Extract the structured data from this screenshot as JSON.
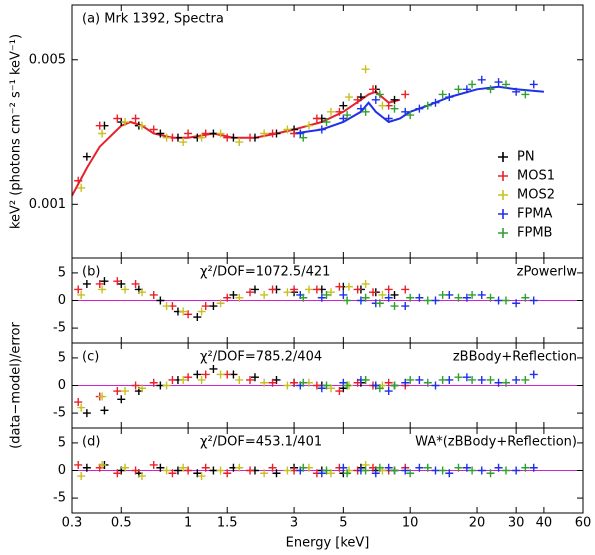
{
  "chart_data": [
    {
      "type": "scatter",
      "title": "(a) Mrk 1392, Spectra",
      "y_label": "keV² (photons cm⁻² s⁻¹ keV⁻¹)",
      "xscale": "log",
      "yscale": "log",
      "xlim": [
        0.3,
        60
      ],
      "ylim": [
        0.00055,
        0.0092
      ],
      "yticks": [
        0.001,
        0.005
      ],
      "legend": "right",
      "series": [
        {
          "name": "PN",
          "color": "#000000",
          "x": [
            0.35,
            0.42,
            0.5,
            0.6,
            0.75,
            0.9,
            1.1,
            1.3,
            1.6,
            2.0,
            2.5,
            3.0,
            4.0,
            5.0,
            6.0,
            7.0,
            8.5
          ],
          "values": [
            0.0017,
            0.0024,
            0.0025,
            0.0024,
            0.0022,
            0.0021,
            0.0021,
            0.0022,
            0.0021,
            0.0021,
            0.0022,
            0.0023,
            0.0026,
            0.003,
            0.0033,
            0.0036,
            0.0032
          ]
        },
        {
          "name": "MOS1",
          "color": "#e8202a",
          "x": [
            0.32,
            0.4,
            0.48,
            0.58,
            0.7,
            0.85,
            1.0,
            1.2,
            1.5,
            1.9,
            2.4,
            3.0,
            3.8,
            4.8,
            5.8,
            6.8,
            8.0,
            9.5
          ],
          "values": [
            0.0013,
            0.0024,
            0.0026,
            0.0026,
            0.0023,
            0.0021,
            0.0022,
            0.0022,
            0.0021,
            0.0021,
            0.0022,
            0.0022,
            0.0026,
            0.0028,
            0.0032,
            0.0036,
            0.003,
            0.0034
          ]
        },
        {
          "name": "MOS2",
          "color": "#c8c020",
          "x": [
            0.33,
            0.41,
            0.52,
            0.62,
            0.8,
            0.95,
            1.15,
            1.4,
            1.7,
            2.2,
            2.8,
            3.5,
            4.4,
            5.3,
            6.3,
            7.5
          ],
          "values": [
            0.0012,
            0.0022,
            0.0025,
            0.0024,
            0.0021,
            0.002,
            0.0021,
            0.0022,
            0.002,
            0.0022,
            0.0023,
            0.0024,
            0.0028,
            0.0033,
            0.0045,
            0.003
          ]
        },
        {
          "name": "FPMA",
          "color": "#2030e8",
          "x": [
            3.2,
            4.0,
            5.0,
            6.0,
            7.0,
            8.0,
            9.5,
            11,
            13,
            15,
            18,
            21,
            25,
            30,
            36
          ],
          "values": [
            0.0022,
            0.0023,
            0.0026,
            0.0029,
            0.0032,
            0.0026,
            0.0028,
            0.0029,
            0.0031,
            0.0033,
            0.0036,
            0.004,
            0.0039,
            0.0035,
            0.0038
          ]
        },
        {
          "name": "FPMB",
          "color": "#30a030",
          "x": [
            3.3,
            4.2,
            5.2,
            6.3,
            7.3,
            8.5,
            10,
            12,
            14,
            16.5,
            19,
            23,
            27,
            33
          ],
          "values": [
            0.0021,
            0.0025,
            0.0027,
            0.0028,
            0.0034,
            0.0029,
            0.0027,
            0.003,
            0.0034,
            0.0036,
            0.0038,
            0.0036,
            0.0038,
            0.0034
          ]
        }
      ],
      "models": [
        {
          "color": "#e8202a",
          "x": [
            0.3,
            0.35,
            0.4,
            0.5,
            0.55,
            0.62,
            0.7,
            0.85,
            1.0,
            1.3,
            1.6,
            2.0,
            2.5,
            3.0,
            4.0,
            5.0,
            6.0,
            6.5,
            7.0,
            8.0,
            9.0
          ],
          "values": [
            0.0011,
            0.0015,
            0.0019,
            0.0024,
            0.0025,
            0.0024,
            0.0022,
            0.0021,
            0.0021,
            0.0022,
            0.0021,
            0.0021,
            0.0022,
            0.0023,
            0.0025,
            0.0028,
            0.0032,
            0.0034,
            0.0035,
            0.0031,
            0.0032
          ]
        },
        {
          "color": "#2030e8",
          "x": [
            3.0,
            4.0,
            5.0,
            6.0,
            6.5,
            7.0,
            8.0,
            9.0,
            10,
            12,
            15,
            20,
            25,
            30,
            40
          ],
          "values": [
            0.0022,
            0.0023,
            0.0025,
            0.0028,
            0.0031,
            0.0028,
            0.0025,
            0.0026,
            0.0028,
            0.003,
            0.0033,
            0.0036,
            0.0037,
            0.0036,
            0.0035
          ]
        }
      ]
    },
    {
      "type": "scatter",
      "title": "(b)",
      "stat": "χ²/DOF=1072.5/421",
      "model": "zPowerlw",
      "xscale": "log",
      "xlim": [
        0.3,
        60
      ],
      "ylim": [
        -7.7,
        7.7
      ],
      "yticks": [
        -5,
        0,
        5
      ],
      "zero_color": "#d020d0",
      "series": [
        {
          "color": "#000000",
          "x": [
            0.35,
            0.42,
            0.5,
            0.6,
            0.75,
            0.9,
            1.1,
            1.3,
            1.6,
            2.0,
            2.5,
            3.0,
            4.0,
            5.0,
            6.0,
            7.0,
            8.5
          ],
          "values": [
            3,
            3.5,
            3,
            2,
            0,
            -2,
            -3,
            -1,
            1,
            2,
            2,
            1.5,
            2,
            2.5,
            2,
            1.5,
            1
          ]
        },
        {
          "color": "#e8202a",
          "x": [
            0.32,
            0.4,
            0.48,
            0.58,
            0.7,
            0.85,
            1.0,
            1.2,
            1.5,
            1.9,
            2.4,
            3.0,
            3.8,
            4.8,
            5.8,
            6.8,
            8.0,
            9.5
          ],
          "values": [
            2,
            3,
            3.5,
            3,
            1,
            -1,
            -2.5,
            -1,
            0.5,
            1.5,
            2,
            2,
            2,
            2.5,
            2,
            1.5,
            2,
            2
          ]
        },
        {
          "color": "#c8c020",
          "x": [
            0.33,
            0.41,
            0.52,
            0.62,
            0.8,
            0.95,
            1.15,
            1.4,
            1.7,
            2.2,
            2.8,
            3.5,
            4.4,
            5.3,
            6.3,
            7.5
          ],
          "values": [
            1,
            2,
            2,
            1.5,
            -1,
            -2,
            -2,
            -0.5,
            0.5,
            1,
            1.5,
            2,
            1.5,
            2.5,
            3,
            1
          ]
        },
        {
          "color": "#2030e8",
          "x": [
            3.2,
            4.0,
            5.0,
            6.0,
            7.0,
            8.0,
            9.5,
            11,
            13,
            15,
            18,
            21,
            25,
            30,
            36
          ],
          "values": [
            1,
            0.5,
            1,
            0,
            -0.5,
            0.5,
            -1,
            0.5,
            0,
            1,
            0.5,
            1,
            0,
            -0.5,
            0
          ]
        },
        {
          "color": "#30a030",
          "x": [
            3.3,
            4.2,
            5.2,
            6.3,
            7.3,
            8.5,
            10,
            12,
            14,
            16.5,
            19,
            23,
            27,
            33
          ],
          "values": [
            0.5,
            1,
            0,
            0.5,
            -0.5,
            -1,
            0.5,
            0,
            1,
            0.5,
            1,
            0.5,
            0,
            0.5
          ]
        }
      ]
    },
    {
      "type": "scatter",
      "title": "(c)",
      "stat": "χ²/DOF=785.2/404",
      "model": "zBBody+Reflection",
      "y_label": "(data−model)/error",
      "xscale": "log",
      "xlim": [
        0.3,
        60
      ],
      "ylim": [
        -7.7,
        7.7
      ],
      "yticks": [
        -5,
        0,
        5
      ],
      "zero_color": "#d020d0",
      "series": [
        {
          "color": "#000000",
          "x": [
            0.35,
            0.42,
            0.5,
            0.6,
            0.75,
            0.9,
            1.1,
            1.3,
            1.6,
            2.0,
            2.5,
            3.0,
            4.0,
            5.0,
            6.0,
            7.0,
            8.5
          ],
          "values": [
            -5,
            -4.5,
            -2.5,
            -1,
            0,
            1,
            2,
            3,
            2,
            1.5,
            1,
            0.5,
            0,
            -0.5,
            0.5,
            0,
            0
          ]
        },
        {
          "color": "#e8202a",
          "x": [
            0.32,
            0.4,
            0.48,
            0.58,
            0.7,
            0.85,
            1.0,
            1.2,
            1.5,
            1.9,
            2.4,
            3.0,
            3.8,
            4.8,
            5.8,
            6.8,
            8.0,
            9.5
          ],
          "values": [
            -3,
            -2,
            -1,
            0,
            0.5,
            1,
            1.5,
            2,
            2,
            1,
            0.5,
            0.5,
            0,
            -1,
            0.5,
            0,
            0.5,
            0
          ]
        },
        {
          "color": "#c8c020",
          "x": [
            0.33,
            0.41,
            0.52,
            0.62,
            0.8,
            0.95,
            1.15,
            1.4,
            1.7,
            2.2,
            2.8,
            3.5,
            4.4,
            5.3,
            6.3,
            7.5
          ],
          "values": [
            -4,
            -2,
            -1,
            -0.5,
            0,
            1,
            1,
            2,
            1,
            0.5,
            0,
            0.5,
            -0.5,
            0,
            1,
            0
          ]
        },
        {
          "color": "#2030e8",
          "x": [
            3.2,
            4.0,
            5.0,
            6.0,
            7.0,
            8.0,
            9.5,
            11,
            13,
            15,
            18,
            21,
            25,
            30,
            36
          ],
          "values": [
            0,
            -0.5,
            0.5,
            1,
            0,
            -1,
            0.5,
            1,
            0,
            1,
            1.5,
            1,
            0.5,
            1,
            2
          ]
        },
        {
          "color": "#30a030",
          "x": [
            3.3,
            4.2,
            5.2,
            6.3,
            7.3,
            8.5,
            10,
            12,
            14,
            16.5,
            19,
            23,
            27,
            33
          ],
          "values": [
            0.5,
            0,
            0,
            1,
            -0.5,
            0,
            1,
            0.5,
            1,
            1.5,
            1,
            1,
            0.5,
            1
          ]
        }
      ]
    },
    {
      "type": "scatter",
      "title": "(d)",
      "stat": "χ²/DOF=453.1/401",
      "model": "WA*(zBBody+Reflection)",
      "x_label": "Energy [keV]",
      "xscale": "log",
      "xlim": [
        0.3,
        60
      ],
      "xticks": [
        0.3,
        0.5,
        1,
        1.5,
        3,
        5,
        10,
        20,
        30,
        40,
        60
      ],
      "ylim": [
        -7.7,
        7.7
      ],
      "yticks": [
        -5,
        0,
        5
      ],
      "zero_color": "#d020d0",
      "series": [
        {
          "color": "#000000",
          "x": [
            0.35,
            0.42,
            0.5,
            0.6,
            0.75,
            0.9,
            1.1,
            1.3,
            1.6,
            2.0,
            2.5,
            3.0,
            4.0,
            5.0,
            6.0,
            7.0,
            8.5
          ],
          "values": [
            0.5,
            1,
            0,
            -0.5,
            0.5,
            0,
            -0.5,
            0,
            0.5,
            0,
            -0.5,
            0.5,
            0,
            -0.5,
            0.5,
            0,
            0
          ]
        },
        {
          "color": "#e8202a",
          "x": [
            0.32,
            0.4,
            0.48,
            0.58,
            0.7,
            0.85,
            1.0,
            1.2,
            1.5,
            1.9,
            2.4,
            3.0,
            3.8,
            4.8,
            5.8,
            6.8,
            8.0,
            9.5
          ],
          "values": [
            1,
            0.5,
            -0.5,
            0,
            1,
            -0.5,
            0,
            0.5,
            -0.5,
            0,
            0.5,
            0,
            -0.5,
            0.5,
            0,
            0.5,
            0,
            0.5
          ]
        },
        {
          "color": "#c8c020",
          "x": [
            0.33,
            0.41,
            0.52,
            0.62,
            0.8,
            0.95,
            1.15,
            1.4,
            1.7,
            2.2,
            2.8,
            3.5,
            4.4,
            5.3,
            6.3,
            7.5
          ],
          "values": [
            -1,
            1,
            0.5,
            -1,
            0,
            0.5,
            -1,
            0,
            0.5,
            -0.5,
            0,
            0.5,
            -0.5,
            0,
            1,
            0
          ]
        },
        {
          "color": "#2030e8",
          "x": [
            3.2,
            4.0,
            5.0,
            6.0,
            7.0,
            8.0,
            9.5,
            11,
            13,
            15,
            18,
            21,
            25,
            30,
            36
          ],
          "values": [
            0,
            -0.5,
            0.5,
            0,
            -0.5,
            0.5,
            0,
            0.5,
            0,
            -0.5,
            0.5,
            0,
            0.5,
            0,
            0.5
          ]
        },
        {
          "color": "#30a030",
          "x": [
            3.3,
            4.2,
            5.2,
            6.3,
            7.3,
            8.5,
            10,
            12,
            14,
            16.5,
            19,
            23,
            27,
            33
          ],
          "values": [
            0.5,
            0,
            -0.5,
            0,
            0.5,
            0,
            -0.5,
            0.5,
            0,
            0.5,
            0,
            -0.5,
            0,
            0.5
          ]
        }
      ]
    }
  ]
}
